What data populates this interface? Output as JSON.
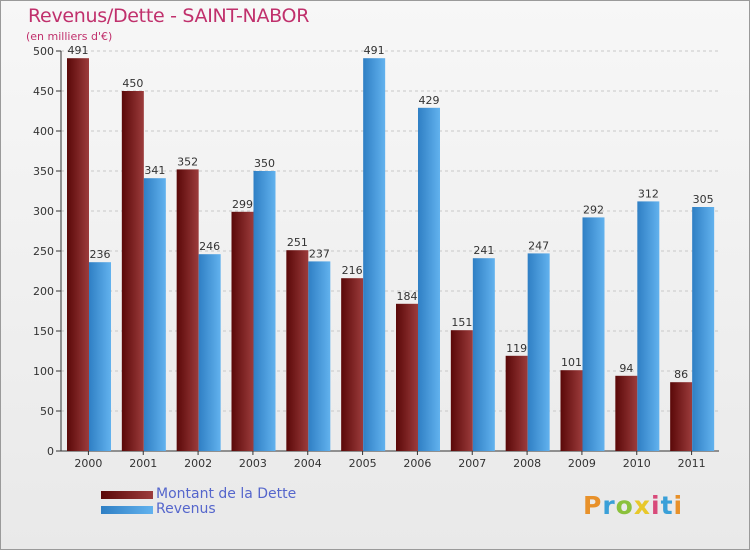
{
  "colors": {
    "debt_dark": "#5a0808",
    "debt_light": "#9c3c3c",
    "revenue_dark": "#2f7fc4",
    "revenue_light": "#62b2ee",
    "title": "#c0306c",
    "legend_text": "#5566cc"
  },
  "logo": {
    "text": "Proxiti",
    "letter_colors": [
      "#e8912a",
      "#3aa0d8",
      "#8bc13c",
      "#e8c82a",
      "#d84a7a",
      "#3aa0d8",
      "#e8912a"
    ]
  },
  "chart_data": {
    "type": "bar",
    "title": "Revenus/Dette - SAINT-NABOR",
    "subtitle": "(en milliers d'€)",
    "xlabel": "",
    "ylabel": "",
    "ylim": [
      0,
      500
    ],
    "yticks": [
      0,
      50,
      100,
      150,
      200,
      250,
      300,
      350,
      400,
      450,
      500
    ],
    "grid": true,
    "legend_position": "bottom-left",
    "categories": [
      "2000",
      "2001",
      "2002",
      "2003",
      "2004",
      "2005",
      "2006",
      "2007",
      "2008",
      "2009",
      "2010",
      "2011"
    ],
    "series": [
      {
        "name": "Montant de la Dette",
        "values": [
          491,
          450,
          352,
          299,
          251,
          216,
          184,
          151,
          119,
          101,
          94,
          86
        ]
      },
      {
        "name": "Revenus",
        "values": [
          236,
          341,
          246,
          350,
          237,
          491,
          429,
          241,
          247,
          292,
          312,
          305
        ]
      }
    ]
  }
}
